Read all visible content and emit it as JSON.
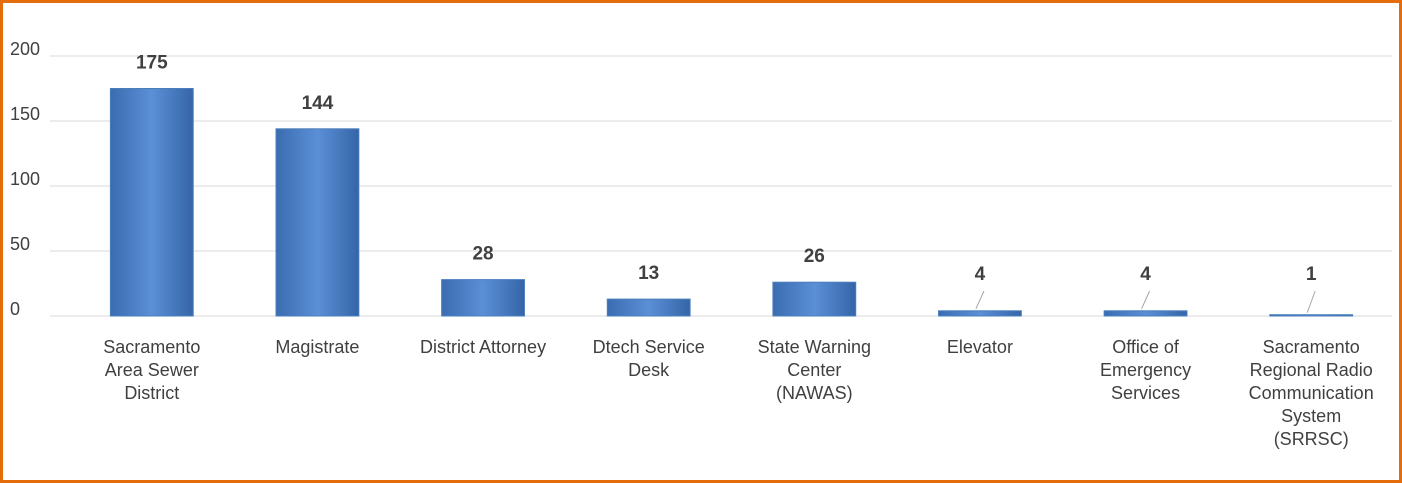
{
  "chart_data": {
    "type": "bar",
    "categories": [
      [
        "Sacramento",
        "Area Sewer",
        "District"
      ],
      [
        "Magistrate"
      ],
      [
        "District Attorney"
      ],
      [
        "Dtech Service",
        "Desk"
      ],
      [
        "State Warning",
        "Center",
        "(NAWAS)"
      ],
      [
        "Elevator"
      ],
      [
        "Office of",
        "Emergency",
        "Services"
      ],
      [
        "Sacramento",
        "Regional Radio",
        "Communication",
        "System",
        "(SRRSC)"
      ]
    ],
    "values": [
      175,
      144,
      28,
      13,
      26,
      4,
      4,
      1
    ],
    "color": "#4a7ebb",
    "ylim": [
      0,
      200
    ],
    "yticks": [
      0,
      50,
      100,
      150,
      200
    ],
    "grid": true
  }
}
